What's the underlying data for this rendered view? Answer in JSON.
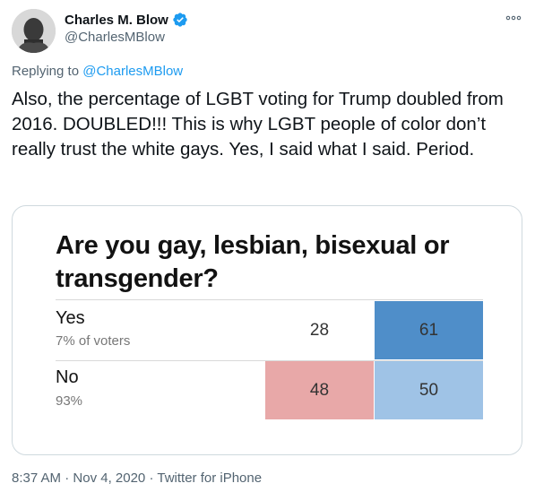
{
  "header": {
    "display_name": "Charles M. Blow",
    "handle": "@CharlesMBlow",
    "avatar_icon": "avatar-photo",
    "verified_icon": "verified-badge-icon",
    "more_icon": "more-options-icon"
  },
  "reply": {
    "prefix": "Replying to",
    "mention": "@CharlesMBlow"
  },
  "tweet": {
    "text": "Also, the percentage of LGBT voting for Trump doubled from 2016. DOUBLED!!! This is why LGBT people of color don’t really trust the white gays. Yes, I said what I said. Period."
  },
  "media": {
    "title": "Are you gay, lesbian, bisexual or transgender?",
    "rows": [
      {
        "label": "Yes",
        "sub": "7% of voters",
        "left_value": "28",
        "right_value": "61"
      },
      {
        "label": "No",
        "sub": "93%",
        "left_value": "48",
        "right_value": "50"
      }
    ],
    "colors": {
      "yes_right": "#4f8ec9",
      "no_left": "#e8a8a8",
      "no_right": "#9fc3e6"
    }
  },
  "meta": {
    "time": "8:37 AM",
    "date": "Nov 4, 2020",
    "source": "Twitter for iPhone",
    "separator": "·"
  },
  "colors": {
    "accent": "#1d9bf0",
    "muted": "#536471",
    "text": "#0f1419"
  }
}
